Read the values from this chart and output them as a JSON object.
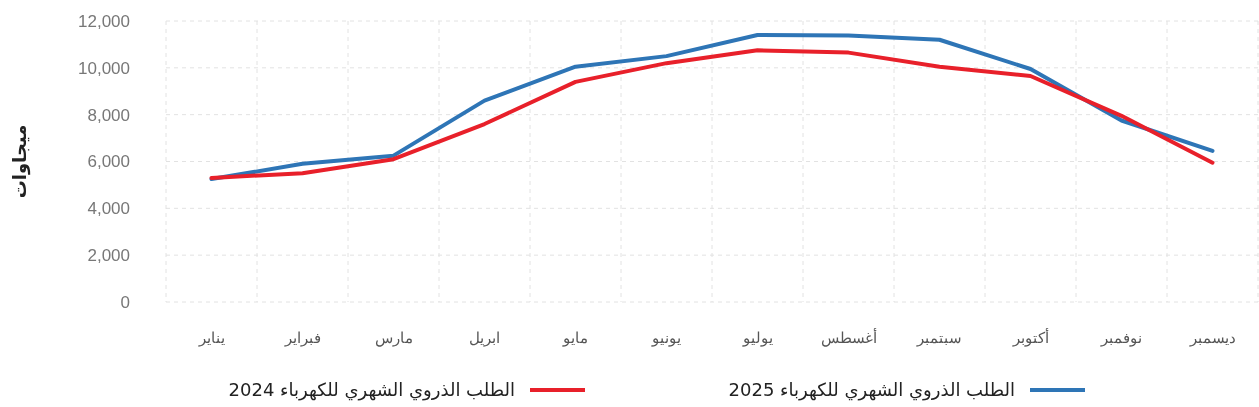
{
  "chart_data": {
    "type": "line",
    "ylabel": "ميجاوات",
    "categories": [
      "يناير",
      "فبراير",
      "مارس",
      "ابريل",
      "مايو",
      "يونيو",
      "يوليو",
      "أغسطس",
      "سبتمبر",
      "أكتوبر",
      "نوفمبر",
      "ديسمبر"
    ],
    "series": [
      {
        "name": "الطلب الذروي الشهري للكهرباء 2025",
        "color": "#2e75b6",
        "values": [
          5250,
          5900,
          6250,
          8600,
          10050,
          10500,
          11400,
          11380,
          11200,
          9950,
          7750,
          6450
        ]
      },
      {
        "name": "الطلب الذروي الشهري للكهرباء 2024",
        "color": "#e8202a",
        "values": [
          5300,
          5500,
          6100,
          7600,
          9400,
          10200,
          10750,
          10650,
          10050,
          9650,
          7950,
          5950
        ]
      }
    ],
    "ylim": [
      0,
      12000
    ],
    "yticks": [
      {
        "value": 0,
        "label": "0"
      },
      {
        "value": 2000,
        "label": "2,000"
      },
      {
        "value": 4000,
        "label": "4,000"
      },
      {
        "value": 6000,
        "label": "6,000"
      },
      {
        "value": 8000,
        "label": "8,000"
      },
      {
        "value": 10000,
        "label": "10,000"
      },
      {
        "value": 12000,
        "label": "12,000"
      }
    ],
    "grid": true,
    "legend": "bottom",
    "marker": "none",
    "line_style": "solid"
  }
}
